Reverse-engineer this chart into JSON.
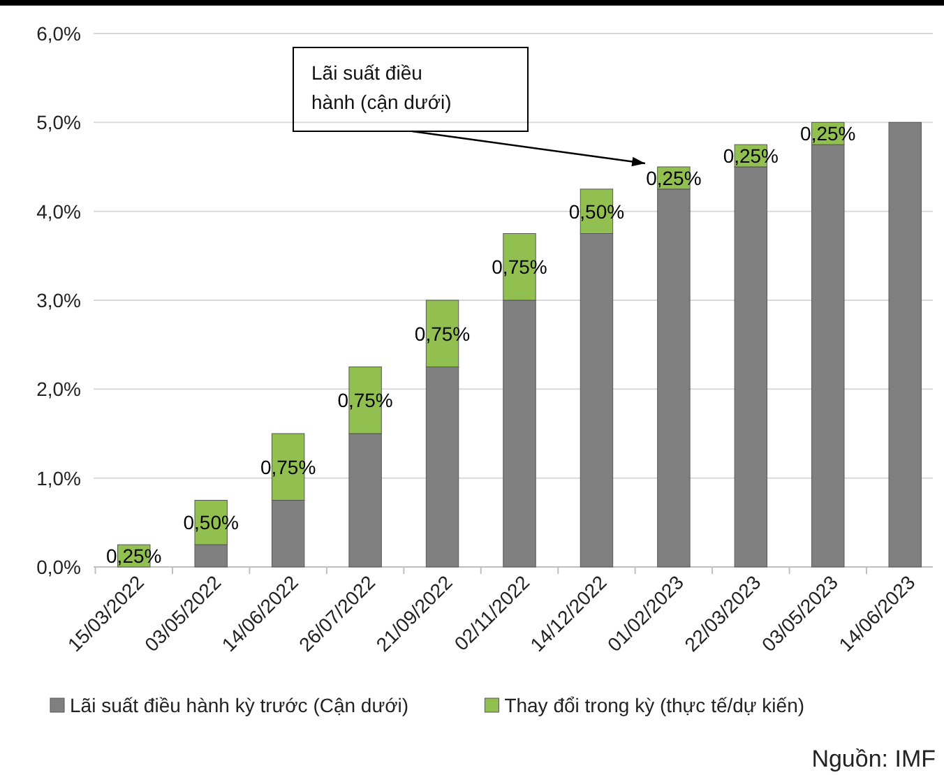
{
  "chart_data": {
    "type": "bar",
    "stacked": true,
    "categories": [
      "15/03/2022",
      "03/05/2022",
      "14/06/2022",
      "26/07/2022",
      "21/09/2022",
      "02/11/2022",
      "14/12/2022",
      "01/02/2023",
      "22/03/2023",
      "03/05/2023",
      "14/06/2023"
    ],
    "series": [
      {
        "name": "Lãi suất điều hành kỳ trước (Cận dưới)",
        "color": "#808080",
        "values": [
          0,
          0.25,
          0.75,
          1.5,
          2.25,
          3.0,
          3.75,
          4.25,
          4.5,
          4.75,
          5.0
        ]
      },
      {
        "name": "Thay đổi trong kỳ (thực tế/dự kiến)",
        "color": "#92c050",
        "values": [
          0.25,
          0.5,
          0.75,
          0.75,
          0.75,
          0.75,
          0.5,
          0.25,
          0.25,
          0.25,
          null
        ],
        "value_labels": [
          "0,25%",
          "0,50%",
          "0,75%",
          "0,75%",
          "0,75%",
          "0,75%",
          "0,50%",
          "0,25%",
          "0,25%",
          "0,25%",
          null
        ]
      }
    ],
    "ylim": [
      0,
      6
    ],
    "yticks": [
      {
        "value": 0,
        "label": "0,0%"
      },
      {
        "value": 1,
        "label": "1,0%"
      },
      {
        "value": 2,
        "label": "2,0%"
      },
      {
        "value": 3,
        "label": "3,0%"
      },
      {
        "value": 4,
        "label": "4,0%"
      },
      {
        "value": 5,
        "label": "5,0%"
      },
      {
        "value": 6,
        "label": "6,0%"
      }
    ],
    "grid": "y",
    "legend": "bottom",
    "annotations": [
      "Lãi suất điều hành (cận dưới)",
      "Nguồn: IMF"
    ]
  }
}
